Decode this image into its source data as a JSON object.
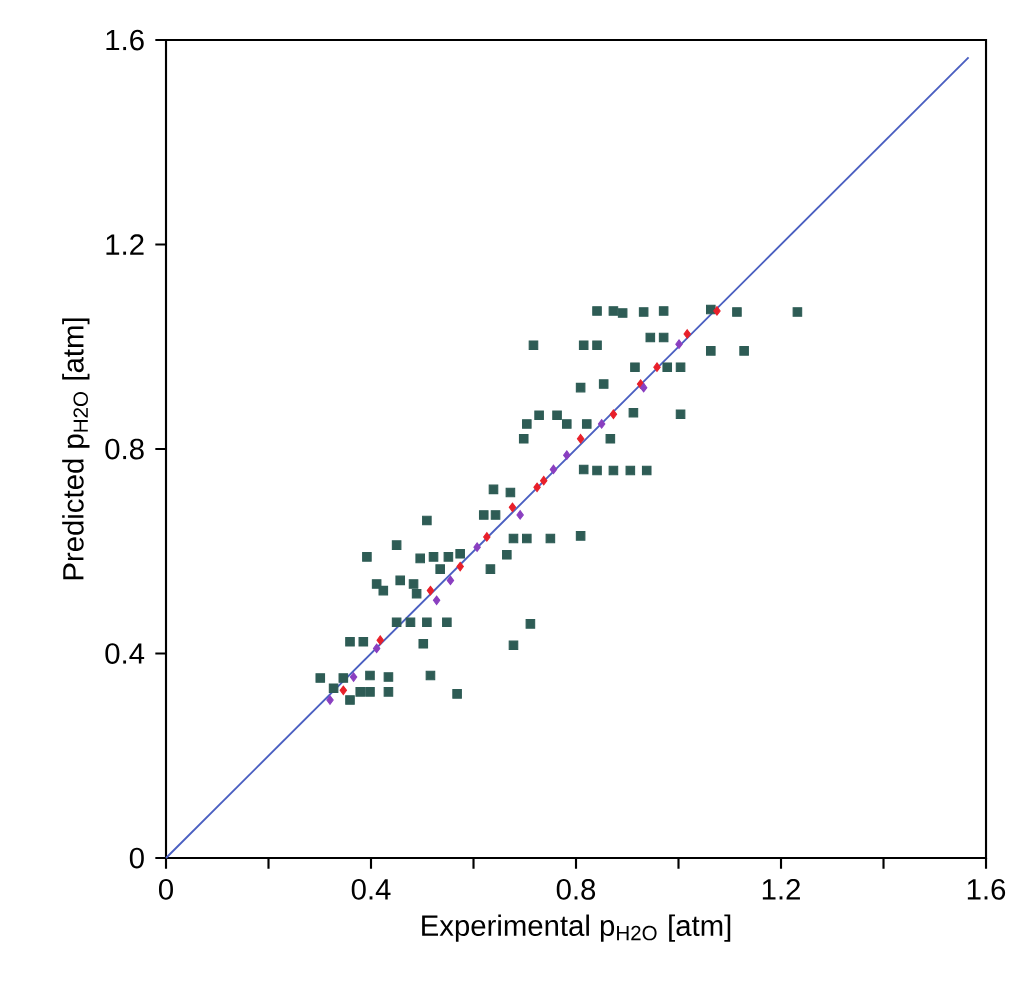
{
  "chart_data": {
    "type": "scatter",
    "xlabel": "Experimental p$_{H2O}$ [atm]",
    "ylabel": "Predicted p$_{H2O}$ [atm]",
    "xlim": [
      0,
      1.6
    ],
    "ylim": [
      0,
      1.6
    ],
    "xticks": [
      0,
      {
        "value": 0.2,
        "label": null
      },
      0.4,
      {
        "value": 0.6,
        "label": null
      },
      0.8,
      {
        "value": 1.0,
        "label": null
      },
      1.2,
      {
        "value": 1.4,
        "label": null
      },
      1.6
    ],
    "yticks": [
      0,
      0.4,
      0.8,
      1.2,
      1.6
    ],
    "series": [
      {
        "color": "#2e5c55",
        "marker": "square",
        "x": [
          0.509,
          0.62,
          0.643,
          0.45,
          0.392,
          0.496,
          0.522,
          0.551,
          0.574,
          0.678,
          0.704,
          0.75,
          0.809,
          0.665,
          0.535,
          0.633,
          0.411,
          0.457,
          0.483,
          0.424,
          0.489,
          0.45,
          0.477,
          0.509,
          0.548,
          0.711,
          0.359,
          0.385,
          0.502,
          0.678,
          0.301,
          0.346,
          0.398,
          0.434,
          0.516,
          0.379,
          0.398,
          0.434,
          0.568,
          0.327,
          0.359,
          0.841,
          0.873,
          0.891,
          0.932,
          0.971,
          1.114,
          1.232,
          1.063,
          0.717,
          0.815,
          0.841,
          0.945,
          0.971,
          1.063,
          1.128,
          0.915,
          0.978,
          1.004,
          0.809,
          0.854,
          0.704,
          0.728,
          0.763,
          0.782,
          0.821,
          0.912,
          1.004,
          0.698,
          0.867,
          0.815,
          0.841,
          0.873,
          0.906,
          0.938,
          0.639,
          0.672
        ],
        "values": [
          0.66,
          0.671,
          0.671,
          0.612,
          0.589,
          0.586,
          0.589,
          0.589,
          0.595,
          0.625,
          0.625,
          0.625,
          0.63,
          0.593,
          0.565,
          0.565,
          0.536,
          0.543,
          0.536,
          0.523,
          0.517,
          0.461,
          0.461,
          0.461,
          0.461,
          0.458,
          0.423,
          0.423,
          0.419,
          0.416,
          0.352,
          0.352,
          0.357,
          0.354,
          0.357,
          0.325,
          0.325,
          0.325,
          0.321,
          0.332,
          0.309,
          1.07,
          1.07,
          1.066,
          1.068,
          1.07,
          1.068,
          1.068,
          1.073,
          1.003,
          1.003,
          1.003,
          1.018,
          1.018,
          0.992,
          0.992,
          0.96,
          0.96,
          0.96,
          0.92,
          0.927,
          0.849,
          0.866,
          0.866,
          0.849,
          0.849,
          0.871,
          0.868,
          0.82,
          0.82,
          0.76,
          0.758,
          0.758,
          0.758,
          0.758,
          0.721,
          0.715
        ]
      },
      {
        "color": "#e8202a",
        "marker": "diamond",
        "x": [
          0.676,
          0.626,
          0.574,
          0.516,
          0.418,
          0.346,
          1.075,
          1.017,
          0.958,
          0.926,
          0.873,
          0.809,
          0.737,
          0.724
        ],
        "values": [
          0.686,
          0.628,
          0.57,
          0.523,
          0.426,
          0.328,
          1.07,
          1.025,
          0.96,
          0.927,
          0.868,
          0.82,
          0.738,
          0.725
        ]
      },
      {
        "color": "#8a3fc0",
        "marker": "diamond",
        "x": [
          0.691,
          0.607,
          0.555,
          0.528,
          0.411,
          0.366,
          0.32,
          1.001,
          0.932,
          0.85,
          0.782,
          0.756
        ],
        "values": [
          0.671,
          0.608,
          0.543,
          0.504,
          0.41,
          0.354,
          0.309,
          1.005,
          0.92,
          0.849,
          0.788,
          0.76
        ]
      },
      {
        "type": "line",
        "color": "#4a5fc1",
        "marker": "none",
        "line_style": "solid",
        "x": [
          0,
          1.566
        ],
        "values": [
          0,
          1.566
        ]
      }
    ]
  }
}
